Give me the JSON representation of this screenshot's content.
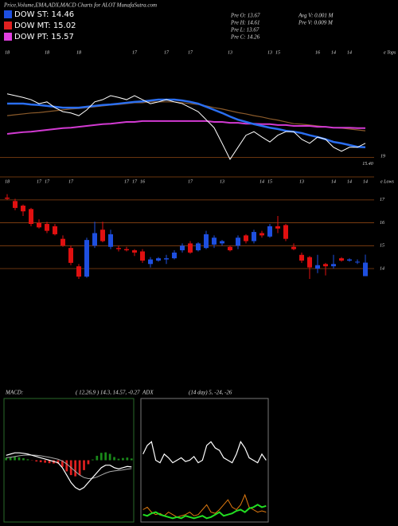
{
  "header": {
    "title": "Price,Volume,EMA,ADX,MACD Charts for ALOT MunafaSutra.com",
    "legend": [
      {
        "label": "DOW ST: 14.46",
        "color": "#1e4fe0"
      },
      {
        "label": "DOW MT: 15.02",
        "color": "#e02020"
      },
      {
        "label": "DOW PT: 15.57",
        "color": "#e040e0"
      }
    ],
    "stats": [
      "Pre   O: 13.67",
      "Pre   H: 14.61",
      "Pre   L: 13.67",
      "Pre   C: 14.26",
      "Avg  V: 0.001 M",
      "Pre   V: 0.009 M"
    ],
    "annotations": [
      "e Tops",
      "19",
      "e Lows"
    ]
  },
  "chart_data": [
    {
      "type": "line",
      "categories": [
        "18",
        null,
        null,
        null,
        null,
        "18",
        null,
        null,
        null,
        "18",
        null,
        null,
        null,
        null,
        null,
        null,
        "17",
        null,
        null,
        null,
        "17",
        null,
        null,
        "17",
        null,
        null,
        null,
        null,
        "13",
        null,
        null,
        null,
        null,
        "13",
        "15",
        null,
        null,
        null,
        null,
        "16",
        null,
        "14",
        null,
        "14",
        null,
        null
      ],
      "series": [
        {
          "color": "#8a5a2a",
          "width": 1.2,
          "values": [
            16.34,
            16.36,
            16.38,
            16.4,
            16.41,
            16.43,
            16.45,
            16.47,
            16.49,
            16.5,
            16.52,
            16.54,
            16.56,
            16.58,
            16.59,
            16.61,
            16.63,
            16.63,
            16.65,
            16.65,
            16.65,
            16.65,
            16.63,
            16.61,
            16.59,
            16.56,
            16.52,
            16.49,
            16.45,
            16.41,
            16.38,
            16.34,
            16.31,
            16.27,
            16.24,
            16.2,
            16.16,
            16.15,
            16.13,
            16.11,
            16.09,
            16.07,
            16.06,
            16.04,
            16.02,
            16.0
          ]
        },
        {
          "color": "#d23ad2",
          "width": 2,
          "values": [
            15.93,
            15.95,
            15.97,
            15.98,
            16.0,
            16.02,
            16.04,
            16.06,
            16.07,
            16.09,
            16.11,
            16.13,
            16.15,
            16.16,
            16.18,
            16.2,
            16.2,
            16.22,
            16.22,
            16.22,
            16.22,
            16.22,
            16.22,
            16.22,
            16.22,
            16.22,
            16.2,
            16.2,
            16.18,
            16.18,
            16.16,
            16.16,
            16.15,
            16.15,
            16.13,
            16.13,
            16.11,
            16.11,
            16.11,
            16.09,
            16.09,
            16.07,
            16.07,
            16.07,
            16.06,
            16.06
          ]
        },
        {
          "color": "#2a6ef0",
          "width": 2.5,
          "values": [
            16.61,
            16.61,
            16.61,
            16.59,
            16.58,
            16.56,
            16.54,
            16.52,
            16.52,
            16.52,
            16.54,
            16.56,
            16.58,
            16.59,
            16.61,
            16.63,
            16.65,
            16.66,
            16.68,
            16.7,
            16.7,
            16.7,
            16.68,
            16.65,
            16.61,
            16.54,
            16.47,
            16.4,
            16.32,
            16.25,
            16.2,
            16.15,
            16.11,
            16.07,
            16.04,
            16.0,
            15.98,
            15.95,
            15.9,
            15.86,
            15.81,
            15.75,
            15.72,
            15.68,
            15.64,
            15.63
          ]
        },
        {
          "color": "#ffffff",
          "width": 1,
          "values": [
            16.83,
            16.79,
            16.75,
            16.7,
            16.61,
            16.65,
            16.52,
            16.43,
            16.4,
            16.34,
            16.47,
            16.65,
            16.7,
            16.79,
            16.75,
            16.7,
            16.79,
            16.7,
            16.61,
            16.65,
            16.7,
            16.65,
            16.61,
            16.52,
            16.43,
            16.25,
            16.07,
            15.72,
            15.36,
            15.63,
            15.9,
            15.98,
            15.86,
            15.75,
            15.9,
            15.98,
            15.98,
            15.81,
            15.72,
            15.86,
            15.81,
            15.63,
            15.54,
            15.63,
            15.63,
            15.72
          ]
        }
      ],
      "ylim": [
        15.0,
        17.9
      ],
      "yticks": [
        {
          "value": 15.4,
          "label": "15.40"
        }
      ],
      "grid_color": "#8b4513"
    },
    {
      "type": "candlestick",
      "categories": [
        "18",
        null,
        null,
        null,
        "17",
        "17",
        null,
        null,
        "17",
        null,
        null,
        null,
        null,
        null,
        null,
        "17",
        "17",
        "16",
        null,
        null,
        null,
        null,
        null,
        "17",
        null,
        null,
        null,
        "13",
        null,
        null,
        null,
        null,
        "14",
        "15",
        null,
        null,
        null,
        "13",
        null,
        null,
        null,
        "14",
        null,
        "14",
        null,
        "14"
      ],
      "open": [
        17.1,
        16.95,
        16.75,
        16.6,
        16.0,
        15.95,
        15.85,
        15.3,
        14.9,
        14.1,
        13.65,
        15.0,
        15.7,
        14.95,
        14.9,
        14.85,
        14.8,
        14.75,
        14.2,
        14.35,
        14.4,
        14.45,
        14.8,
        15.1,
        14.8,
        14.9,
        15.05,
        15.1,
        14.95,
        15.0,
        15.45,
        15.2,
        15.55,
        15.4,
        15.85,
        15.9,
        14.95,
        14.6,
        14.5,
        14.0,
        14.2,
        14.1,
        14.45,
        14.35,
        14.3,
        13.67
      ],
      "high": [
        17.25,
        17.05,
        16.8,
        16.65,
        16.15,
        16.05,
        15.95,
        15.45,
        15.0,
        14.2,
        15.35,
        16.05,
        16.05,
        15.7,
        15.0,
        14.95,
        14.85,
        14.85,
        14.5,
        14.5,
        14.6,
        14.8,
        15.1,
        15.2,
        15.15,
        15.65,
        15.45,
        15.25,
        15.0,
        15.45,
        15.5,
        15.7,
        15.65,
        15.95,
        16.3,
        15.95,
        15.1,
        14.7,
        14.55,
        14.6,
        14.25,
        14.6,
        14.5,
        14.45,
        14.4,
        14.61
      ],
      "low": [
        17.0,
        16.55,
        16.3,
        15.85,
        15.75,
        15.55,
        15.45,
        14.95,
        14.15,
        13.55,
        13.6,
        14.9,
        15.15,
        14.85,
        14.75,
        14.75,
        14.55,
        14.25,
        14.05,
        14.3,
        14.2,
        14.4,
        14.7,
        14.65,
        14.75,
        14.85,
        14.9,
        15.0,
        14.75,
        14.85,
        15.1,
        15.1,
        15.35,
        15.35,
        15.55,
        15.2,
        14.8,
        14.25,
        13.55,
        13.8,
        13.7,
        14.0,
        14.3,
        14.3,
        14.2,
        13.67
      ],
      "close": [
        17.05,
        16.65,
        16.5,
        15.95,
        15.8,
        15.65,
        15.5,
        15.0,
        14.25,
        13.65,
        15.25,
        15.55,
        15.2,
        15.5,
        14.85,
        14.8,
        14.7,
        14.35,
        14.4,
        14.45,
        14.45,
        14.7,
        15.0,
        14.7,
        15.1,
        15.5,
        15.35,
        15.2,
        14.8,
        15.35,
        15.2,
        15.6,
        15.45,
        15.85,
        15.75,
        15.3,
        14.85,
        14.35,
        14.05,
        14.15,
        14.1,
        14.2,
        14.35,
        14.4,
        14.3,
        14.26
      ],
      "up_color": "#1e4fe0",
      "down_color": "#e01010",
      "ylim": [
        13.2,
        17.9
      ],
      "yticks": [
        14,
        15,
        16,
        17
      ],
      "grid": true,
      "grid_color": "#8b4513"
    },
    {
      "type": "macd",
      "title": "MACD:",
      "subtitle": "( 12,26,9 ) 14.3, 14.57, -0.27",
      "series": [
        {
          "color": "#aaaaaa",
          "width": 1,
          "values": [
            0.1,
            0.12,
            0.15,
            0.18,
            0.2,
            0.21,
            0.21,
            0.2,
            0.18,
            0.15,
            0.12,
            0.08,
            0.04,
            -0.03,
            -0.15,
            -0.3,
            -0.45,
            -0.6,
            -0.7,
            -0.74,
            -0.73,
            -0.68,
            -0.6,
            -0.52,
            -0.46,
            -0.43,
            -0.41,
            -0.39,
            -0.36,
            -0.34
          ]
        },
        {
          "color": "#ffffff",
          "width": 1.2,
          "values": [
            0.2,
            0.25,
            0.3,
            0.3,
            0.28,
            0.25,
            0.2,
            0.15,
            0.1,
            0.05,
            0,
            -0.05,
            -0.1,
            -0.3,
            -0.6,
            -0.9,
            -1.1,
            -1.2,
            -1.1,
            -0.9,
            -0.7,
            -0.5,
            -0.3,
            -0.2,
            -0.2,
            -0.3,
            -0.35,
            -0.3,
            -0.25,
            -0.27
          ]
        }
      ],
      "histogram": [
        0.1,
        0.13,
        0.15,
        0.12,
        0.08,
        0.04,
        -0.01,
        -0.05,
        -0.08,
        -0.1,
        -0.12,
        -0.13,
        -0.14,
        -0.27,
        -0.45,
        -0.6,
        -0.65,
        -0.6,
        -0.4,
        -0.16,
        0.03,
        0.18,
        0.3,
        0.32,
        0.26,
        0.13,
        0.06,
        0.09,
        0.11,
        0.07
      ],
      "pos_color": "#1a8a1a",
      "neg_color": "#e02020",
      "ylim": [
        -2.5,
        2.5
      ]
    },
    {
      "type": "line",
      "title": "ADX",
      "subtitle": "(14 day) 5, -24, -26",
      "series": [
        {
          "color": "#ffffff",
          "width": 1.2,
          "values": [
            55,
            62,
            65,
            50,
            48,
            55,
            52,
            48,
            50,
            52,
            49,
            50,
            53,
            48,
            50,
            62,
            65,
            60,
            58,
            52,
            50,
            48,
            55,
            65,
            60,
            52,
            50,
            48,
            55,
            50
          ]
        },
        {
          "color": "#e07a10",
          "width": 1,
          "values": [
            10,
            12,
            8,
            6,
            7,
            5,
            8,
            6,
            4,
            5,
            6,
            8,
            5,
            6,
            10,
            14,
            8,
            7,
            10,
            14,
            18,
            12,
            10,
            14,
            22,
            12,
            10,
            8,
            9,
            8
          ]
        },
        {
          "color": "#22dd22",
          "width": 2,
          "values": [
            6,
            5,
            7,
            8,
            6,
            5,
            4,
            3,
            4,
            3,
            5,
            4,
            3,
            4,
            5,
            3,
            4,
            6,
            8,
            5,
            6,
            7,
            9,
            10,
            8,
            11,
            12,
            14,
            12,
            13
          ]
        }
      ],
      "ylim": [
        0,
        100
      ]
    }
  ]
}
